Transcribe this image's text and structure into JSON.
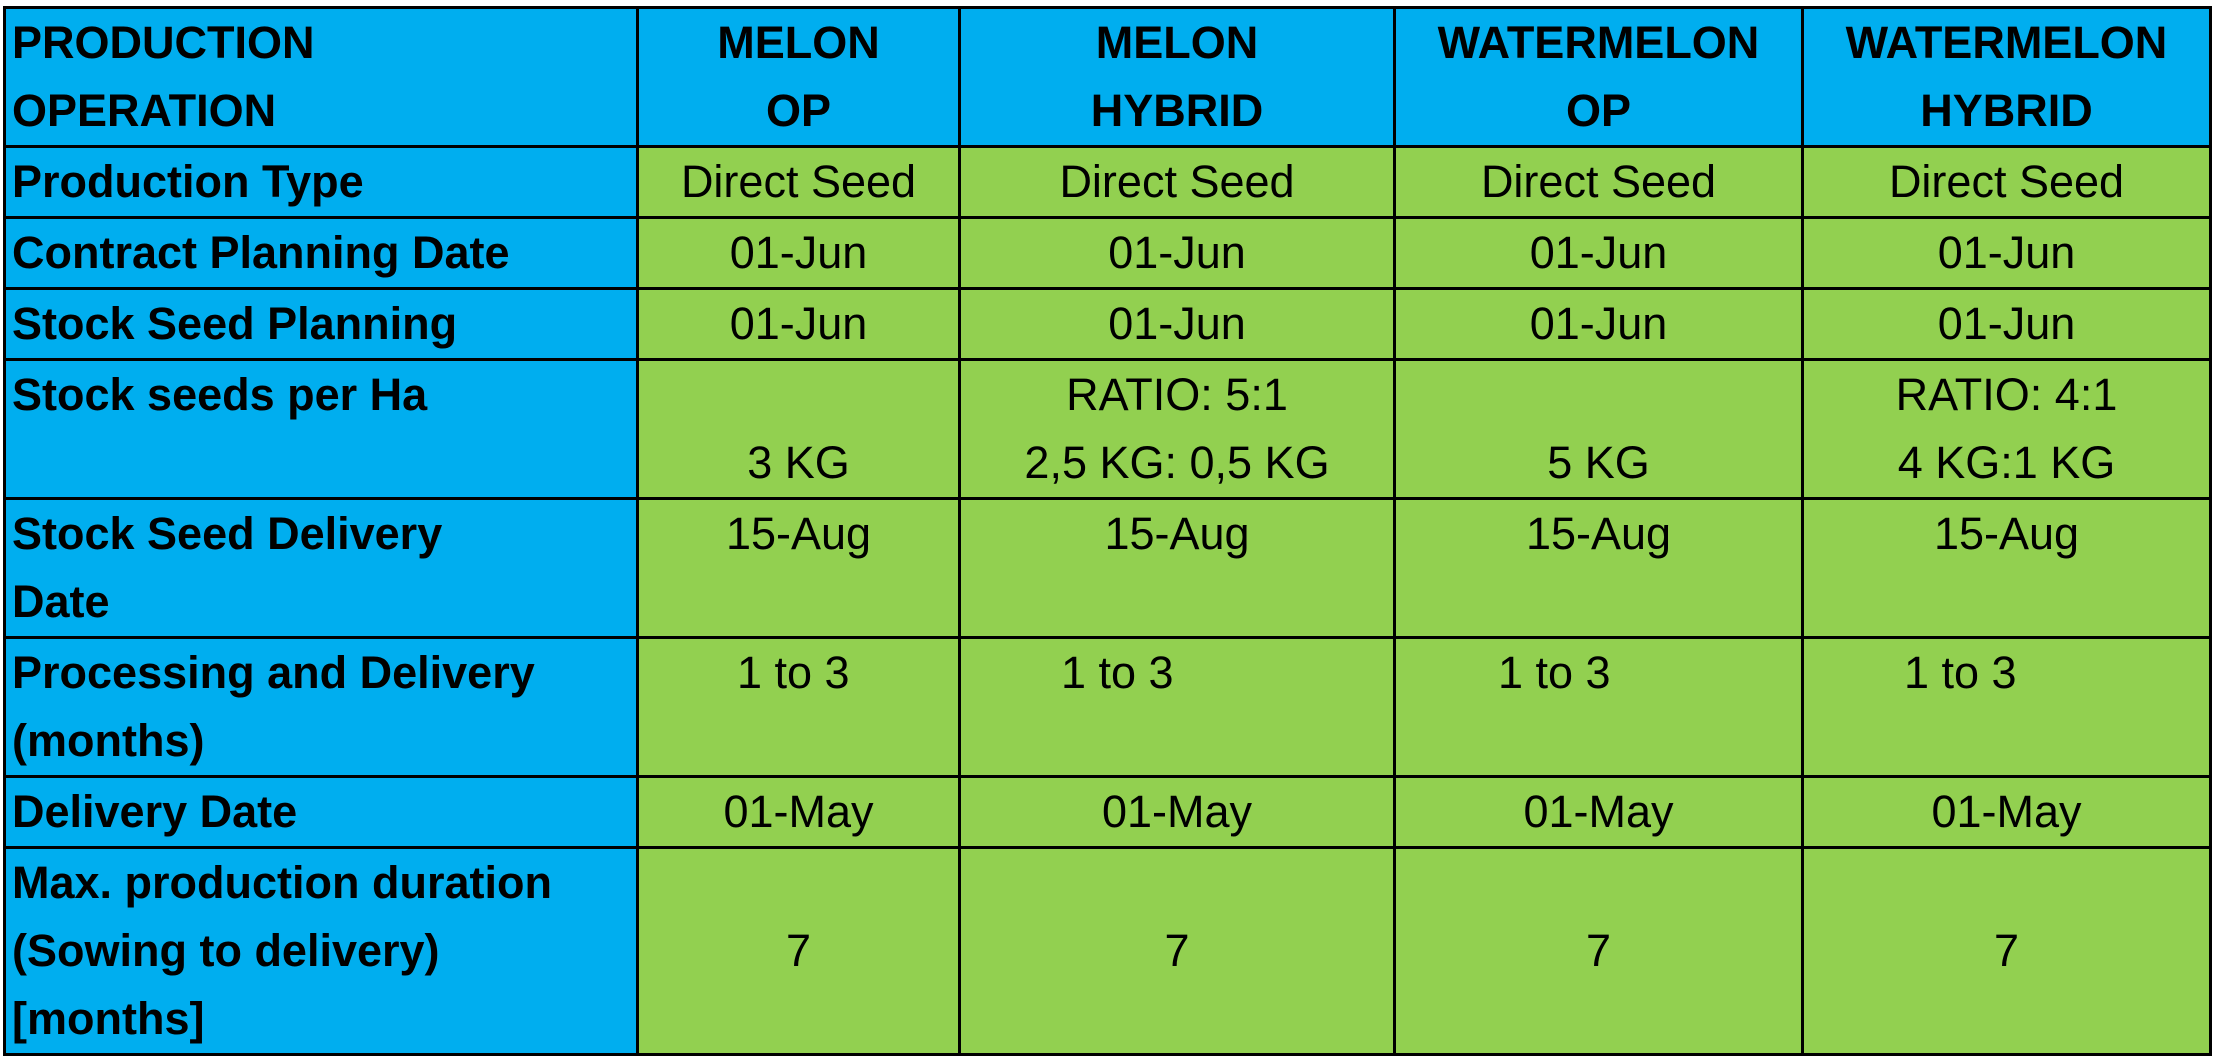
{
  "header": {
    "operation": [
      "PRODUCTION",
      "OPERATION"
    ],
    "columns": [
      [
        "MELON",
        "OP"
      ],
      [
        "MELON",
        "HYBRID"
      ],
      [
        "WATERMELON",
        "OP"
      ],
      [
        "WATERMELON",
        "HYBRID"
      ]
    ]
  },
  "rows": {
    "production_type": {
      "label": "Production Type",
      "values": [
        "Direct Seed",
        "Direct Seed",
        "Direct Seed",
        "Direct Seed"
      ]
    },
    "contract_planning": {
      "label": "Contract Planning Date",
      "values": [
        "01-Jun",
        "01-Jun",
        "01-Jun",
        "01-Jun"
      ]
    },
    "stock_seed_planning": {
      "label": "Stock Seed Planning",
      "values": [
        "01-Jun",
        "01-Jun",
        "01-Jun",
        "01-Jun"
      ]
    },
    "stock_seeds_per_ha": {
      "label": "Stock seeds per Ha",
      "values": [
        [
          "3 KG"
        ],
        [
          "RATIO: 5:1",
          "2,5 KG: 0,5 KG"
        ],
        [
          "5 KG"
        ],
        [
          "RATIO: 4:1",
          "4 KG:1 KG"
        ]
      ]
    },
    "stock_seed_delivery": {
      "label": [
        "Stock Seed Delivery",
        "Date"
      ],
      "values": [
        "15-Aug",
        "15-Aug",
        "15-Aug",
        "15-Aug"
      ]
    },
    "processing_delivery": {
      "label": [
        "Processing and Delivery",
        "(months)"
      ],
      "values": [
        "1 to 3",
        "1 to 3",
        "1 to 3",
        "1 to 3"
      ]
    },
    "delivery_date": {
      "label": "Delivery Date",
      "values": [
        "01-May",
        "01-May",
        "01-May",
        "01-May"
      ]
    },
    "max_duration": {
      "label": [
        "Max. production duration",
        "(Sowing to delivery)",
        "[months]"
      ],
      "values": [
        "7",
        "7",
        "7",
        "7"
      ]
    }
  },
  "colors": {
    "label_background": "#00aeef",
    "value_background": "#92d050",
    "border": "#000000"
  }
}
